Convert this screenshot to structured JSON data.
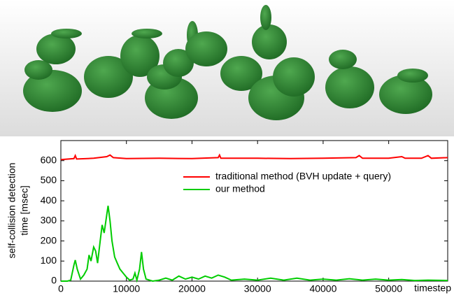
{
  "chart_data": {
    "type": "line",
    "ylabel": [
      "self-collision detection",
      "time [msec]"
    ],
    "xlabel": "timestep",
    "xlim": [
      0,
      59000
    ],
    "ylim": [
      0,
      700
    ],
    "xticks": [
      0,
      10000,
      20000,
      30000,
      40000,
      50000
    ],
    "yticks": [
      0,
      100,
      200,
      300,
      400,
      500,
      600
    ],
    "legend": "upper right",
    "series": [
      {
        "name": "traditional method (BVH update + query)",
        "color": "#ff0000",
        "x": [
          0,
          2000,
          2200,
          2400,
          5000,
          7000,
          7500,
          8000,
          10000,
          15000,
          20000,
          24000,
          24200,
          24400,
          30000,
          35000,
          40000,
          45000,
          45500,
          46000,
          50000,
          52000,
          52500,
          55000,
          56000,
          56500,
          59000
        ],
        "values": [
          605,
          610,
          625,
          608,
          612,
          620,
          628,
          615,
          610,
          612,
          610,
          615,
          628,
          612,
          612,
          610,
          612,
          615,
          625,
          612,
          612,
          620,
          612,
          612,
          625,
          612,
          615
        ]
      },
      {
        "name": "our method",
        "color": "#00cc00",
        "x": [
          0,
          1000,
          1500,
          2000,
          2200,
          2500,
          3000,
          3500,
          4000,
          4300,
          4600,
          5000,
          5300,
          5600,
          6000,
          6300,
          6600,
          7000,
          7200,
          7500,
          7800,
          8200,
          8600,
          9000,
          9500,
          10000,
          10500,
          11000,
          11300,
          11600,
          12000,
          12300,
          12600,
          13000,
          14000,
          15000,
          16000,
          17000,
          18000,
          19000,
          20000,
          21000,
          22000,
          23000,
          24000,
          25000,
          26000,
          28000,
          30000,
          32000,
          34000,
          36000,
          38000,
          40000,
          42000,
          44000,
          46000,
          48000,
          50000,
          52000,
          54000,
          56000,
          59000
        ],
        "values": [
          0,
          0,
          5,
          80,
          105,
          60,
          10,
          30,
          60,
          130,
          100,
          170,
          150,
          90,
          200,
          280,
          240,
          330,
          375,
          300,
          200,
          120,
          90,
          60,
          40,
          20,
          5,
          10,
          40,
          5,
          60,
          145,
          60,
          10,
          0,
          5,
          15,
          5,
          25,
          10,
          20,
          10,
          25,
          15,
          30,
          20,
          5,
          10,
          5,
          15,
          5,
          15,
          5,
          10,
          5,
          12,
          5,
          10,
          5,
          8,
          3,
          5,
          3
        ]
      }
    ]
  }
}
